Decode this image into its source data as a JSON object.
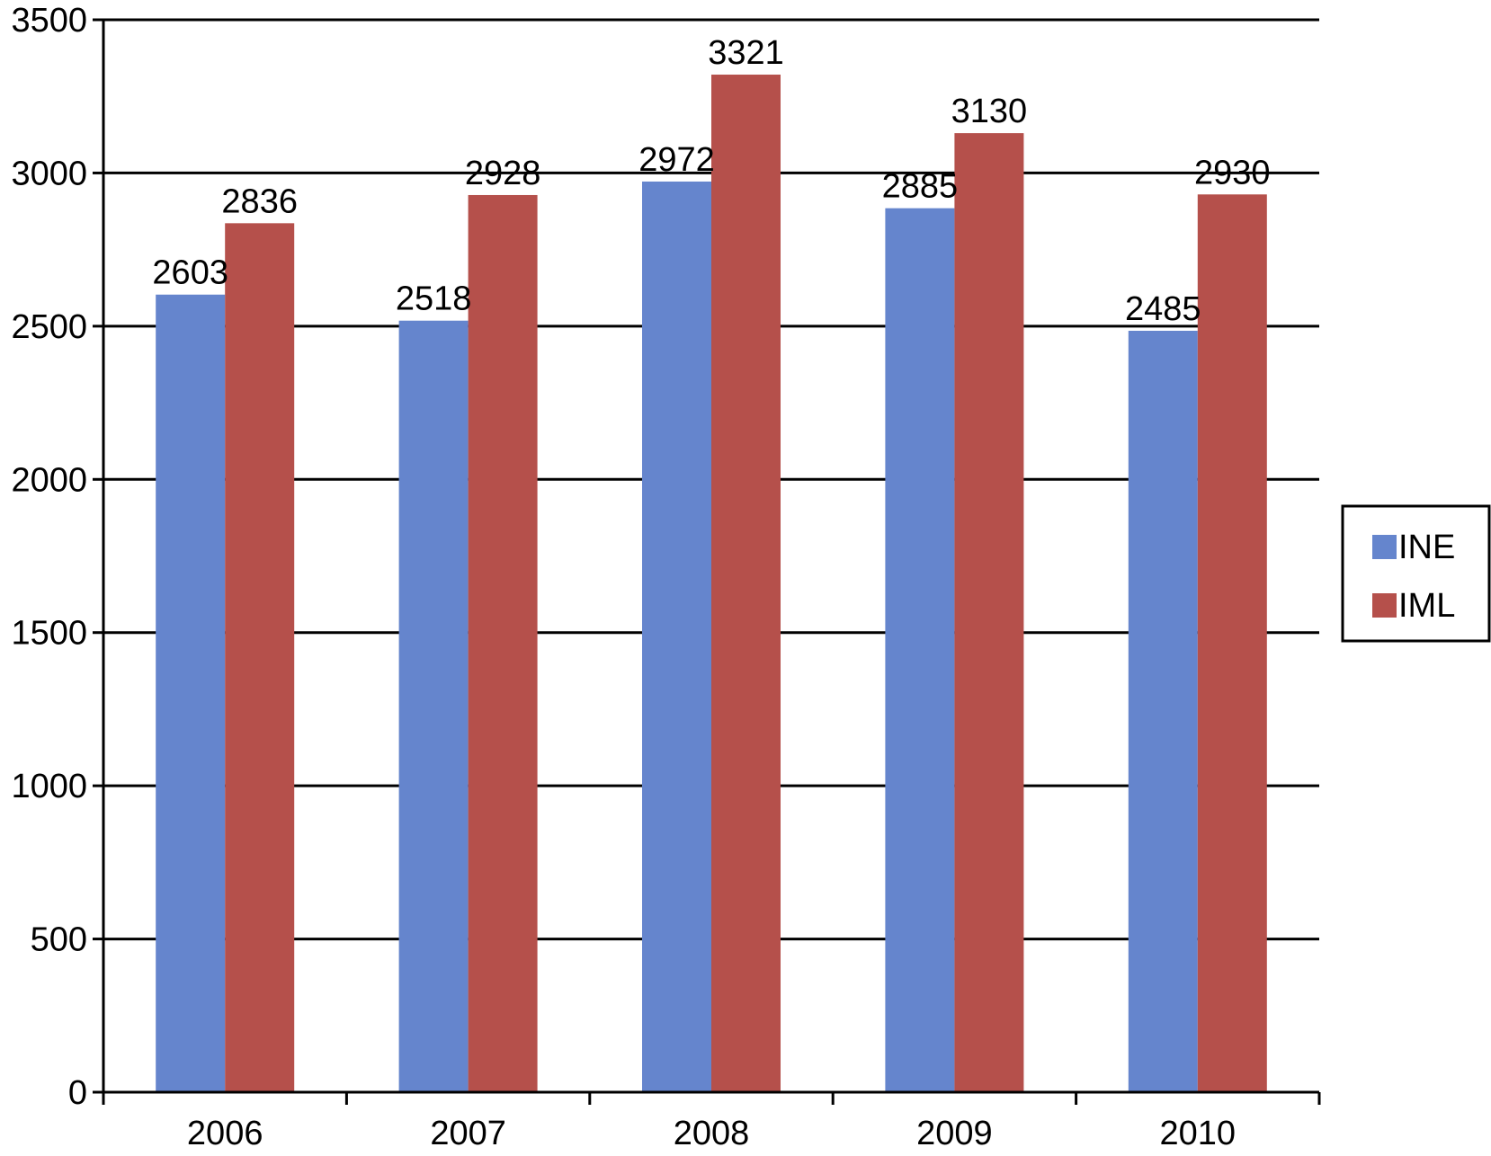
{
  "chart_data": {
    "type": "bar",
    "title": "",
    "xlabel": "",
    "ylabel": "",
    "categories": [
      "2006",
      "2007",
      "2008",
      "2009",
      "2010"
    ],
    "series": [
      {
        "name": "INE",
        "values": [
          2603,
          2518,
          2972,
          2885,
          2485
        ],
        "color": "#6585cd"
      },
      {
        "name": "IML",
        "values": [
          2836,
          2928,
          3321,
          3130,
          2930
        ],
        "color": "#b5504b"
      }
    ],
    "ylim": [
      0,
      3500
    ],
    "yticks": [
      "0",
      "500",
      "1000",
      "1500",
      "2000",
      "2500",
      "3000",
      "3500"
    ],
    "grid": true,
    "legend_position": "right",
    "data_labels": true
  }
}
